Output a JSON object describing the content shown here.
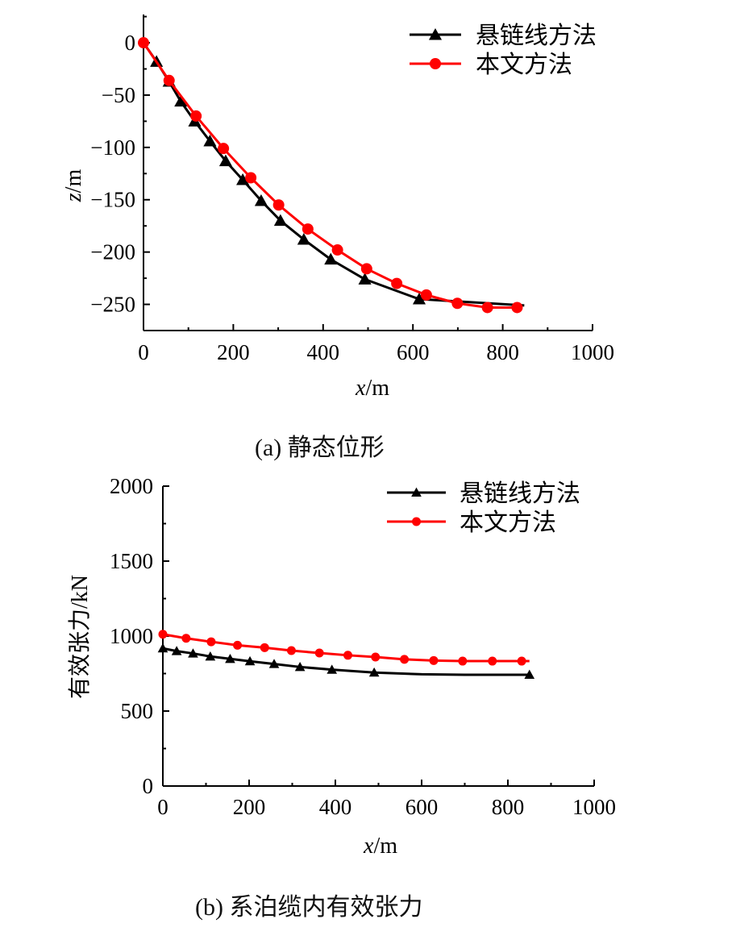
{
  "chart_data": [
    {
      "type": "line",
      "title": "",
      "caption": "(a)  静态位形",
      "xlabel_var": "x",
      "xlabel_unit": "/m",
      "ylabel_var": "z",
      "ylabel_unit": "/m",
      "xlim": [
        0,
        1000
      ],
      "ylim": [
        -275,
        27
      ],
      "xticks": [
        0,
        200,
        400,
        600,
        800,
        1000
      ],
      "xtick_labels": [
        "0",
        "200",
        "400",
        "600",
        "800",
        "1000"
      ],
      "yticks": [
        0,
        -50,
        -100,
        -150,
        -200,
        -250
      ],
      "ytick_labels": [
        "0",
        "−50",
        "−100",
        "−150",
        "−200",
        "−250"
      ],
      "grid": false,
      "legend_position": "top-right",
      "series": [
        {
          "name": "悬链线方法",
          "color": "#000000",
          "marker": "triangle",
          "x": [
            0,
            29,
            57,
            83,
            114,
            148,
            183,
            221,
            262,
            305,
            357,
            417,
            493,
            614,
            848
          ],
          "y": [
            0,
            -18,
            -37,
            -56,
            -75,
            -94,
            -113,
            -131,
            -151,
            -170,
            -188,
            -207,
            -226,
            -245,
            -251
          ],
          "marker_x": [
            29,
            57,
            83,
            114,
            148,
            183,
            221,
            262,
            305,
            357,
            417,
            493,
            614
          ]
        },
        {
          "name": "本文方法",
          "color": "#ff0000",
          "marker": "circle",
          "x": [
            0,
            57,
            117,
            178,
            239,
            301,
            366,
            432,
            497,
            564,
            630,
            699,
            766,
            832
          ],
          "y": [
            0,
            -36,
            -70,
            -101,
            -129,
            -155,
            -178,
            -198,
            -216,
            -230,
            -241,
            -249,
            -253,
            -253
          ]
        }
      ]
    },
    {
      "type": "line",
      "title": "",
      "caption": "(b)  系泊缆内有效张力",
      "xlabel_var": "x",
      "xlabel_unit": "/m",
      "ylabel_var": "",
      "ylabel_unit": "有效张力/kN",
      "xlim": [
        0,
        1000
      ],
      "ylim": [
        0,
        2000
      ],
      "xticks": [
        0,
        200,
        400,
        600,
        800,
        1000
      ],
      "xtick_labels": [
        "0",
        "200",
        "400",
        "600",
        "800",
        "1000"
      ],
      "yticks": [
        0,
        500,
        1000,
        1500,
        2000
      ],
      "ytick_labels": [
        "0",
        "500",
        "1000",
        "1500",
        "2000"
      ],
      "grid": false,
      "legend_position": "top-right",
      "series": [
        {
          "name": "悬链线方法",
          "color": "#000000",
          "marker": "triangle",
          "x": [
            0,
            32,
            70,
            110,
            156,
            202,
            258,
            318,
            392,
            490,
            600,
            700,
            850
          ],
          "y": [
            918,
            900,
            884,
            864,
            848,
            832,
            814,
            794,
            776,
            757,
            745,
            742,
            742
          ],
          "marker_x": [
            0,
            32,
            70,
            110,
            156,
            202,
            258,
            318,
            392,
            490,
            850
          ]
        },
        {
          "name": "本文方法",
          "color": "#ff0000",
          "marker": "circle",
          "x": [
            0,
            54,
            112,
            173,
            236,
            298,
            363,
            429,
            493,
            560,
            628,
            695,
            764,
            832,
            850
          ],
          "y": [
            1012,
            985,
            962,
            939,
            923,
            903,
            887,
            872,
            860,
            845,
            837,
            833,
            833,
            833,
            833
          ],
          "marker_x": [
            0,
            54,
            112,
            173,
            236,
            298,
            363,
            429,
            493,
            560,
            628,
            695,
            764,
            832
          ]
        }
      ]
    }
  ]
}
